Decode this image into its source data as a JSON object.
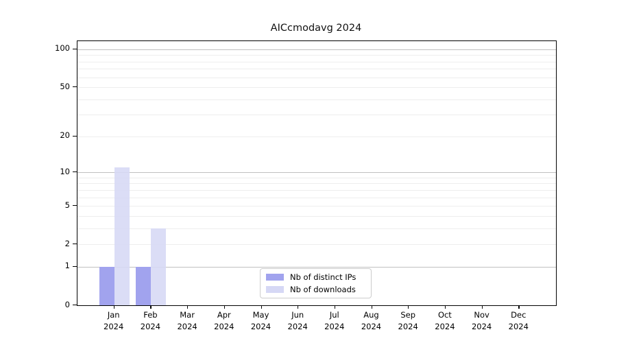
{
  "chart_data": {
    "type": "bar",
    "title": "AICcmodavg 2024",
    "categories": [
      "Jan",
      "Feb",
      "Mar",
      "Apr",
      "May",
      "Jun",
      "Jul",
      "Aug",
      "Sep",
      "Oct",
      "Nov",
      "Dec"
    ],
    "category_year": "2024",
    "series": [
      {
        "name": "Nb of distinct IPs",
        "color": "#a1a3ee",
        "values": [
          1,
          1,
          0,
          0,
          0,
          0,
          0,
          0,
          0,
          0,
          0,
          0
        ]
      },
      {
        "name": "Nb of downloads",
        "color": "#d6d8f5",
        "values": [
          11,
          3,
          0,
          0,
          0,
          0,
          0,
          0,
          0,
          0,
          0,
          0
        ]
      }
    ],
    "xlabel": "",
    "ylabel": "",
    "yscale": "log1p",
    "ylim": [
      0,
      116
    ],
    "yticks": [
      0,
      1,
      2,
      5,
      10,
      20,
      50,
      100
    ],
    "major_gridlines": [
      1,
      10,
      100
    ],
    "minor_gridlines": [
      2,
      3,
      4,
      5,
      6,
      7,
      8,
      9,
      20,
      30,
      40,
      50,
      60,
      70,
      80,
      90
    ],
    "grid": true,
    "legend_position": "lower-center-inside",
    "colors": {
      "axis": "#000000",
      "major_grid": "#c0c0c0",
      "minor_grid": "#ededed"
    }
  }
}
